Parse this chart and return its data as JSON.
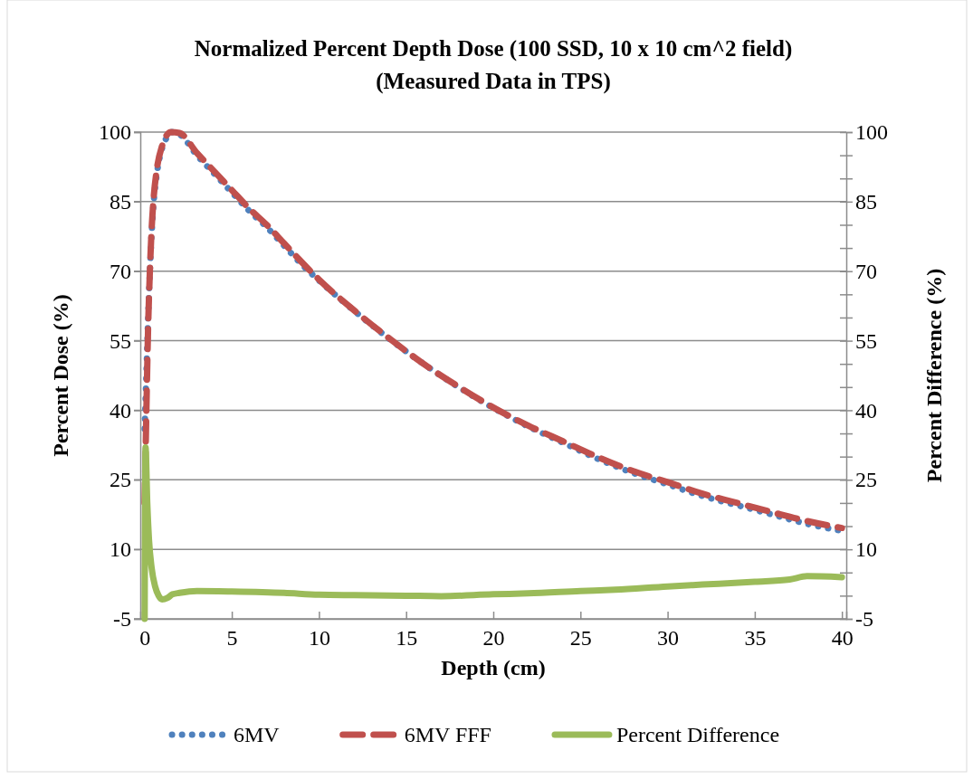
{
  "chart_data": {
    "type": "line",
    "title": "Normalized Percent Depth Dose (100 SSD, 10 x 10 cm^2 field)",
    "subtitle": "(Measured Data in TPS)",
    "xlabel": "Depth (cm)",
    "ylabel": "Percent Dose (%)",
    "y2label": "Percent Difference (%)",
    "xlim": [
      -0.25,
      40.25
    ],
    "xticks": [
      0,
      5,
      10,
      15,
      20,
      25,
      30,
      35,
      40
    ],
    "ylim": [
      -5,
      100
    ],
    "yticks": [
      -5,
      10,
      25,
      40,
      55,
      70,
      85,
      100
    ],
    "y2lim": [
      -5,
      100
    ],
    "y2ticks": [
      -5,
      {
        "value": 0,
        "label": null
      },
      {
        "value": 5,
        "label": null
      },
      10,
      {
        "value": 15,
        "label": null
      },
      {
        "value": 20,
        "label": null
      },
      25,
      {
        "value": 30,
        "label": null
      },
      {
        "value": 35,
        "label": null
      },
      40,
      {
        "value": 45,
        "label": null
      },
      {
        "value": 50,
        "label": null
      },
      55,
      {
        "value": 60,
        "label": null
      },
      {
        "value": 65,
        "label": null
      },
      70,
      {
        "value": 75,
        "label": null
      },
      {
        "value": 80,
        "label": null
      },
      85,
      {
        "value": 90,
        "label": null
      },
      {
        "value": 95,
        "label": null
      },
      100
    ],
    "grid": "y",
    "legend": "bottom",
    "marker": "none",
    "series": [
      {
        "name": "6MV",
        "color": "#4f81bd",
        "line_style": "dotted",
        "x": [
          0,
          0.1,
          0.2,
          0.3,
          0.4,
          0.5,
          0.7,
          1,
          1.3,
          1.5,
          2,
          3,
          4,
          5,
          6,
          7,
          8,
          9,
          10,
          12,
          14,
          16,
          18,
          20,
          22,
          24,
          26,
          28,
          30,
          32,
          34,
          36,
          38,
          40
        ],
        "values": [
          36,
          48,
          60,
          70,
          78,
          84,
          91,
          96.5,
          99,
          100,
          99.5,
          95,
          91,
          87,
          83,
          79.5,
          75.5,
          71.5,
          68,
          61.5,
          55.5,
          50,
          45,
          40.5,
          36.5,
          33,
          29.5,
          26.5,
          24,
          21.5,
          19.5,
          17.5,
          15.5,
          14
        ]
      },
      {
        "name": "6MV FFF",
        "color": "#c0504d",
        "line_style": "dashed",
        "x": [
          0,
          0.1,
          0.2,
          0.3,
          0.4,
          0.5,
          0.7,
          1,
          1.3,
          1.5,
          2,
          3,
          4,
          5,
          6,
          7,
          8,
          9,
          10,
          12,
          14,
          16,
          18,
          20,
          22,
          24,
          26,
          28,
          30,
          32,
          34,
          36,
          38,
          40
        ],
        "values": [
          20,
          40,
          58,
          70,
          79,
          85,
          92,
          97,
          99.5,
          100,
          99.8,
          95.5,
          91.5,
          87.5,
          83.5,
          80,
          76,
          72,
          68.2,
          61.6,
          55.6,
          50,
          45.1,
          40.6,
          36.7,
          33.3,
          29.9,
          26.9,
          24.5,
          22,
          20,
          18,
          16.1,
          14.6
        ]
      },
      {
        "name": "Percent Difference",
        "color": "#9bbb59",
        "line_style": "solid",
        "axis": "y2",
        "x": [
          0,
          0.05,
          0.15,
          0.25,
          0.4,
          0.6,
          0.8,
          1,
          1.3,
          1.6,
          2,
          3,
          5,
          8,
          10,
          12,
          15,
          17,
          20,
          22,
          25,
          27,
          30,
          32,
          35,
          37,
          38,
          40
        ],
        "values": [
          -5,
          32,
          20,
          12,
          6,
          2,
          0,
          -0.8,
          -0.5,
          0.3,
          0.6,
          1,
          0.9,
          0.6,
          0.2,
          0.1,
          0,
          -0.1,
          0.3,
          0.5,
          1,
          1.3,
          2,
          2.4,
          3,
          3.5,
          4.2,
          4
        ]
      }
    ]
  }
}
